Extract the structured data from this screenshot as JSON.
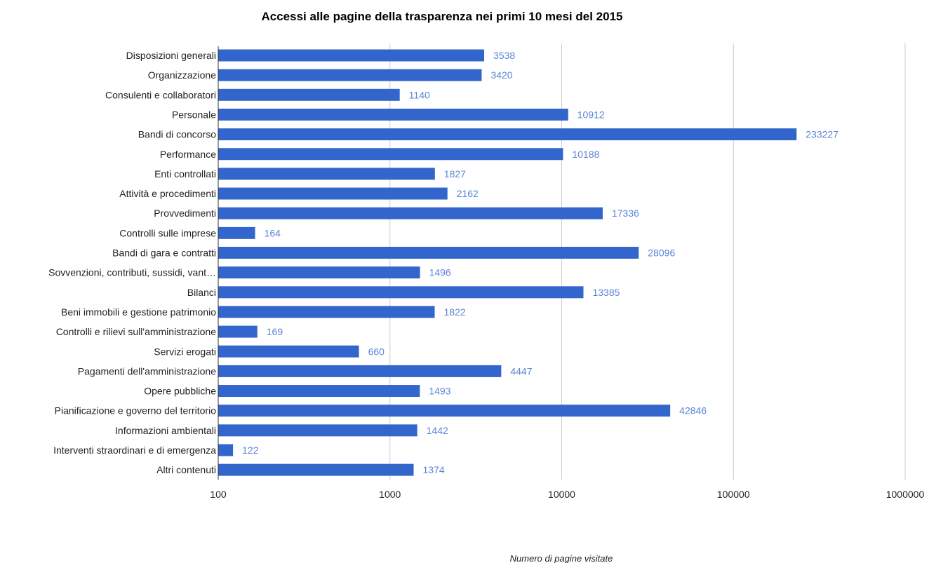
{
  "chart_data": {
    "type": "bar",
    "orientation": "horizontal",
    "title": "Accessi alle pagine della trasparenza nei primi 10 mesi del 2015",
    "xlabel": "Numero di pagine visitate",
    "ylabel": "",
    "x_scale": "log",
    "xlim": [
      100,
      1000000
    ],
    "ticks": [
      "100",
      "1000",
      "10000",
      "100000",
      "1000000"
    ],
    "grid": true,
    "legend": "none",
    "categories": [
      "Disposizioni generali",
      "Organizzazione",
      "Consulenti e collaboratori",
      "Personale",
      "Bandi di concorso",
      "Performance",
      "Enti controllati",
      "Attività e procedimenti",
      "Provvedimenti",
      "Controlli sulle imprese",
      "Bandi di gara e contratti",
      "Sovvenzioni, contributi, sussidi, vant…",
      "Bilanci",
      "Beni immobili e gestione patrimonio",
      "Controlli e rilievi sull'amministrazione",
      "Servizi erogati",
      "Pagamenti dell'amministrazione",
      "Opere pubbliche",
      "Pianificazione e governo del territorio",
      "Informazioni ambientali",
      "Interventi straordinari e di emergenza",
      "Altri contenuti"
    ],
    "values": [
      3538,
      3420,
      1140,
      10912,
      233227,
      10188,
      1827,
      2162,
      17336,
      164,
      28096,
      1496,
      13385,
      1822,
      169,
      660,
      4447,
      1493,
      42846,
      1442,
      122,
      1374
    ],
    "value_labels": [
      "3538",
      "3420",
      "1140",
      "10912",
      "233227",
      "10188",
      "1827",
      "2162",
      "17336",
      "164",
      "28096",
      "1496",
      "13385",
      "1822",
      "169",
      "660",
      "4447",
      "1493",
      "42846",
      "1442",
      "122",
      "1374"
    ],
    "colors": {
      "bar": "#3366cc",
      "value_label": "#5b85d6",
      "grid": "#cccccc",
      "axis": "#333333"
    }
  }
}
